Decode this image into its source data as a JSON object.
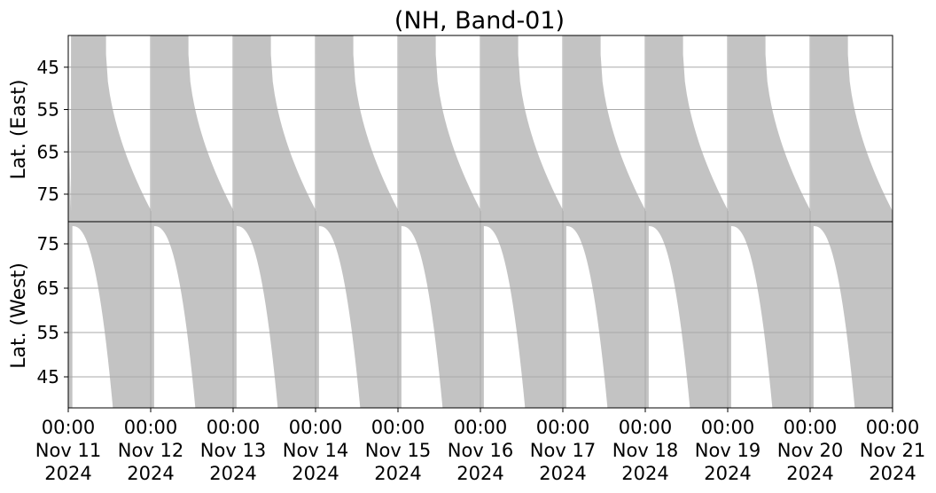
{
  "chart_data": {
    "type": "area",
    "title": "(NH, Band-01)",
    "x_ticks": [
      {
        "line1": "00:00",
        "line2": "Nov 11",
        "line3": "2024"
      },
      {
        "line1": "00:00",
        "line2": "Nov 12",
        "line3": "2024"
      },
      {
        "line1": "00:00",
        "line2": "Nov 13",
        "line3": "2024"
      },
      {
        "line1": "00:00",
        "line2": "Nov 14",
        "line3": "2024"
      },
      {
        "line1": "00:00",
        "line2": "Nov 15",
        "line3": "2024"
      },
      {
        "line1": "00:00",
        "line2": "Nov 16",
        "line3": "2024"
      },
      {
        "line1": "00:00",
        "line2": "Nov 17",
        "line3": "2024"
      },
      {
        "line1": "00:00",
        "line2": "Nov 18",
        "line3": "2024"
      },
      {
        "line1": "00:00",
        "line2": "Nov 19",
        "line3": "2024"
      },
      {
        "line1": "00:00",
        "line2": "Nov 20",
        "line3": "2024"
      },
      {
        "line1": "00:00",
        "line2": "Nov 21",
        "line3": "2024"
      }
    ],
    "xlim": [
      "2024-11-11 00:00",
      "2024-11-21 00:00"
    ],
    "fill_color": "#c3c3c3",
    "grid": true,
    "panels": [
      {
        "name": "east",
        "ylabel": "Lat. (East)",
        "ylim": [
          37.5,
          81.5
        ],
        "y_inverted": true,
        "yticks": [
          45,
          55,
          65,
          75
        ],
        "grey_coverage_hours": [
          [
            0.8,
            11.0
          ],
          [
            24.2,
            35.0
          ],
          [
            48.2,
            59.0
          ],
          [
            72.2,
            83.0
          ],
          [
            96.2,
            107.0
          ],
          [
            120.2,
            131.0
          ],
          [
            144.2,
            155.0
          ],
          [
            168.2,
            179.0
          ],
          [
            192.2,
            203.0
          ],
          [
            216.2,
            227.0
          ]
        ],
        "min_lat_at_gap_start": 42,
        "max_lat_at_gap_end": 79
      },
      {
        "name": "west",
        "ylabel": "Lat. (West)",
        "ylim": [
          38,
          80
        ],
        "y_inverted": false,
        "yticks": [
          45,
          55,
          65,
          75
        ],
        "grey_coverage_hours": [
          [
            0.0,
            1.2
          ],
          [
            13.0,
            25.0
          ],
          [
            37.0,
            49.0
          ],
          [
            61.0,
            73.0
          ],
          [
            85.0,
            97.0
          ],
          [
            109.0,
            121.0
          ],
          [
            133.0,
            145.0
          ],
          [
            157.0,
            169.0
          ],
          [
            181.0,
            193.0
          ],
          [
            205.0,
            217.0
          ],
          [
            229.0,
            240.0
          ]
        ],
        "max_lat_at_gap_start": 79,
        "min_lat_at_gap_end": 38
      }
    ]
  }
}
